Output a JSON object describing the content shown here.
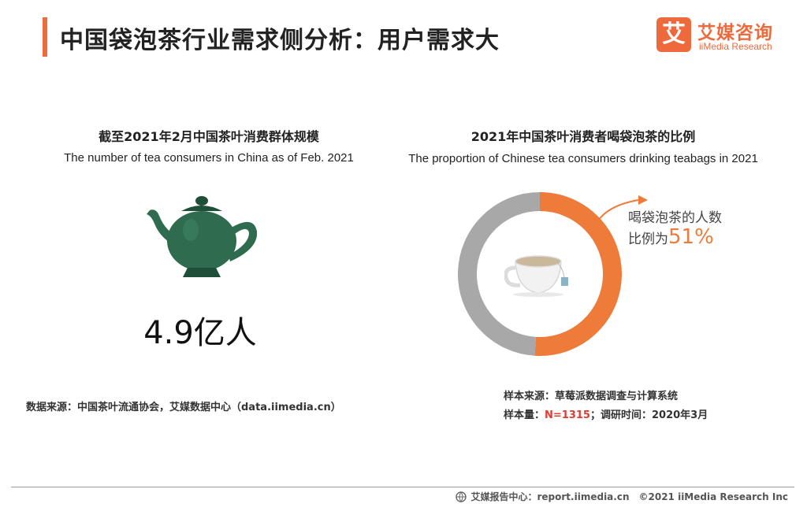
{
  "header": {
    "title": "中国袋泡茶行业需求侧分析：用户需求大",
    "logo_cn": "艾媒咨询",
    "logo_en": "iiMedia Research",
    "logo_mark": "艾"
  },
  "left_panel": {
    "title_cn": "截至2021年2月中国茶叶消费群体规模",
    "title_en": "The number of tea consumers in China as of Feb. 2021",
    "value": "4.9亿人",
    "icon": "teapot-icon",
    "source": "数据来源：中国茶叶流通协会，艾媒数据中心（data.iimedia.cn）"
  },
  "right_panel": {
    "title_cn": "2021年中国茶叶消费者喝袋泡茶的比例",
    "title_en": "The proportion of Chinese tea consumers drinking teabags in 2021",
    "callout_line1": "喝袋泡茶的人数",
    "callout_prefix": "比例为",
    "callout_value": "51%",
    "icon": "tea-cup-icon",
    "sample_source": "样本来源：草莓派数据调查与计算系统",
    "sample_size_label": "样本量：",
    "sample_size_value": "N=1315",
    "sample_time": "；调研时间：2020年3月"
  },
  "chart_data": {
    "type": "pie",
    "values": [
      51,
      49
    ],
    "colors": [
      "#ee7b3a",
      "#a8a8a8"
    ],
    "legend": "none"
  },
  "footer": {
    "label": "艾媒报告中心：",
    "url": "report.iimedia.cn",
    "copyright": "©2021  iiMedia Research  Inc"
  }
}
